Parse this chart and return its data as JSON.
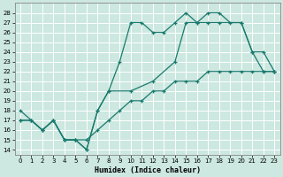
{
  "xlabel": "Humidex (Indice chaleur)",
  "bg_color": "#cce8e0",
  "grid_color": "#ffffff",
  "line_color": "#1a7a6e",
  "xlim": [
    -0.5,
    23.5
  ],
  "ylim": [
    13.5,
    29.0
  ],
  "yticks": [
    14,
    15,
    16,
    17,
    18,
    19,
    20,
    21,
    22,
    23,
    24,
    25,
    26,
    27,
    28
  ],
  "xticks": [
    0,
    1,
    2,
    3,
    4,
    5,
    6,
    7,
    8,
    9,
    10,
    11,
    12,
    13,
    14,
    15,
    16,
    17,
    18,
    19,
    20,
    21,
    22,
    23
  ],
  "line1_x": [
    0,
    1,
    2,
    3,
    4,
    5,
    6,
    7,
    8,
    9,
    10,
    11,
    12,
    13,
    14,
    15,
    16,
    17,
    18,
    19,
    20,
    21,
    22,
    23
  ],
  "line1_y": [
    18,
    17,
    16,
    17,
    15,
    15,
    14,
    18,
    20,
    23,
    27,
    27,
    26,
    26,
    27,
    28,
    27,
    28,
    28,
    27,
    27,
    24,
    22,
    22
  ],
  "line2_x": [
    0,
    1,
    2,
    3,
    4,
    5,
    6,
    7,
    8,
    10,
    12,
    14,
    15,
    16,
    17,
    18,
    20,
    21,
    22,
    23
  ],
  "line2_y": [
    17,
    17,
    16,
    17,
    15,
    15,
    14,
    18,
    20,
    20,
    21,
    23,
    27,
    27,
    27,
    27,
    27,
    24,
    24,
    22
  ],
  "line3_x": [
    0,
    1,
    2,
    3,
    4,
    5,
    6,
    7,
    8,
    9,
    10,
    11,
    12,
    13,
    14,
    15,
    16,
    17,
    18,
    19,
    20,
    21,
    22,
    23
  ],
  "line3_y": [
    17,
    17,
    16,
    17,
    15,
    15,
    15,
    16,
    17,
    18,
    19,
    19,
    20,
    20,
    21,
    21,
    21,
    22,
    22,
    22,
    22,
    22,
    22,
    22
  ]
}
